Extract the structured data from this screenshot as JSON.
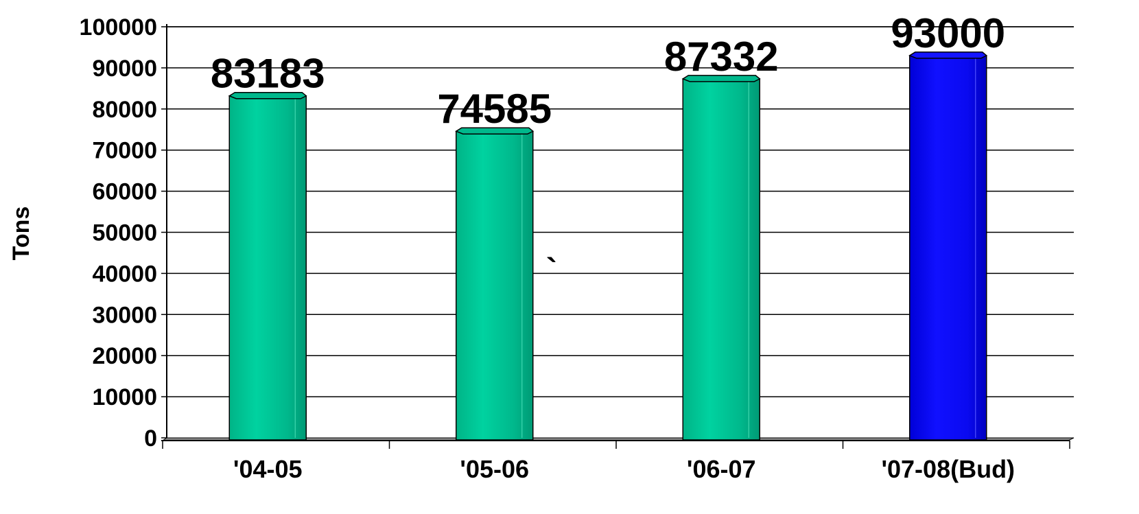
{
  "chart_data": {
    "type": "bar",
    "ylabel": "Tons",
    "categories": [
      "'04-05",
      "'05-06",
      "'06-07",
      "'07-08(Bud)"
    ],
    "values": [
      83183,
      74585,
      87332,
      93000
    ],
    "data_labels": [
      "83183",
      "74585",
      "87332",
      "93000"
    ],
    "yticks": [
      "0",
      "10000",
      "20000",
      "30000",
      "40000",
      "50000",
      "60000",
      "70000",
      "80000",
      "90000",
      "100000"
    ],
    "ylim": [
      0,
      100000
    ],
    "grid": true,
    "legend": "none",
    "bar_colors": [
      "#00c896",
      "#00c896",
      "#00c896",
      "#0a14f0"
    ],
    "annotation": "`"
  }
}
